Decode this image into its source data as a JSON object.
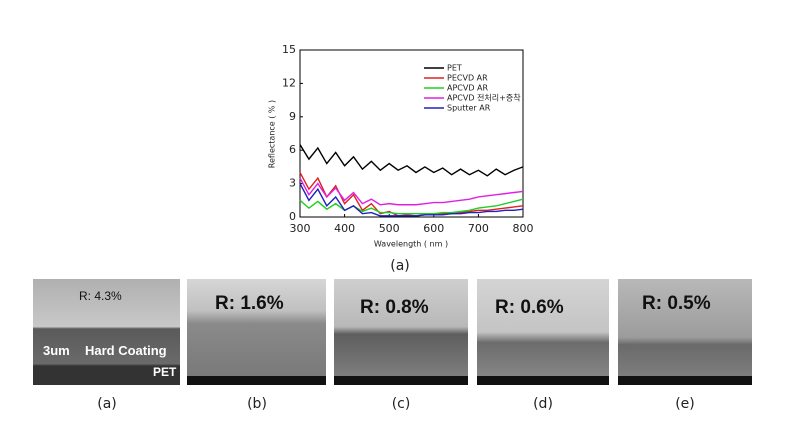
{
  "chart_data": {
    "type": "line",
    "y_label": "Reflectance ( % )",
    "x_label": "Wavelength ( nm )",
    "x": [
      300,
      320,
      340,
      360,
      380,
      400,
      420,
      440,
      460,
      480,
      500,
      520,
      540,
      560,
      580,
      600,
      620,
      640,
      660,
      680,
      700,
      720,
      740,
      760,
      780,
      800
    ],
    "xlim": [
      300,
      800
    ],
    "xticks": [
      300,
      400,
      500,
      600,
      700,
      800
    ],
    "ylim": [
      0,
      15
    ],
    "yticks": [
      0,
      3,
      6,
      9,
      12,
      15
    ],
    "legend": "upper right",
    "series": [
      {
        "name": "PET",
        "color": "#000000",
        "values": [
          6.5,
          5.2,
          6.2,
          4.8,
          5.8,
          4.6,
          5.4,
          4.3,
          5.0,
          4.2,
          4.8,
          4.2,
          4.6,
          4.0,
          4.5,
          4.0,
          4.4,
          3.8,
          4.3,
          3.8,
          4.2,
          3.7,
          4.3,
          3.8,
          4.2,
          4.5
        ]
      },
      {
        "name": "PECVD AR",
        "color": "#e02020",
        "values": [
          4.0,
          2.5,
          3.5,
          1.8,
          2.8,
          1.2,
          2.0,
          0.6,
          1.2,
          0.3,
          0.5,
          0.1,
          0.2,
          0.1,
          0.2,
          0.2,
          0.3,
          0.3,
          0.4,
          0.5,
          0.6,
          0.6,
          0.7,
          0.8,
          0.9,
          1.0
        ]
      },
      {
        "name": "APCVD AR",
        "color": "#20d020",
        "values": [
          1.5,
          0.8,
          1.4,
          0.7,
          1.2,
          0.6,
          1.0,
          0.5,
          0.8,
          0.4,
          0.4,
          0.3,
          0.3,
          0.3,
          0.3,
          0.3,
          0.4,
          0.4,
          0.5,
          0.6,
          0.8,
          0.9,
          1.0,
          1.2,
          1.4,
          1.6
        ]
      },
      {
        "name": "APCVD 전처리+증착",
        "color": "#e020e0",
        "values": [
          3.5,
          2.0,
          3.0,
          1.8,
          2.6,
          1.5,
          2.2,
          1.2,
          1.6,
          1.1,
          1.2,
          1.1,
          1.1,
          1.1,
          1.2,
          1.3,
          1.3,
          1.4,
          1.5,
          1.6,
          1.8,
          1.9,
          2.0,
          2.1,
          2.2,
          2.3
        ]
      },
      {
        "name": "Sputter AR",
        "color": "#2020c0",
        "values": [
          3.0,
          1.5,
          2.5,
          1.0,
          1.8,
          0.6,
          1.0,
          0.3,
          0.4,
          0.1,
          0.1,
          0.1,
          0.1,
          0.1,
          0.2,
          0.2,
          0.2,
          0.3,
          0.3,
          0.4,
          0.4,
          0.5,
          0.5,
          0.6,
          0.6,
          0.7
        ]
      }
    ]
  },
  "figure_caption": "(a)",
  "sem_images": [
    {
      "label": "R: 4.3%",
      "thickness": "3um",
      "layer": "Hard Coating",
      "substrate": "PET",
      "caption": "(a)"
    },
    {
      "label": "R: 1.6%",
      "caption": "(b)"
    },
    {
      "label": "R: 0.8%",
      "caption": "(c)"
    },
    {
      "label": "R: 0.6%",
      "caption": "(d)"
    },
    {
      "label": "R: 0.5%",
      "caption": "(e)"
    }
  ]
}
